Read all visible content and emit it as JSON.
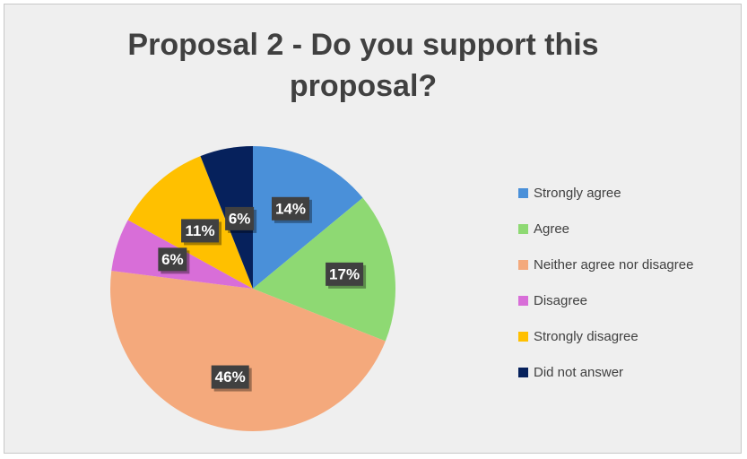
{
  "chart_data": {
    "type": "pie",
    "title": "Proposal 2 - Do you support this proposal?",
    "categories": [
      "Strongly agree",
      "Agree",
      "Neither agree nor disagree",
      "Disagree",
      "Strongly disagree",
      "Did not answer"
    ],
    "values": [
      14,
      17,
      46,
      6,
      11,
      6
    ],
    "data_labels": [
      "14%",
      "17%",
      "46%",
      "6%",
      "11%",
      "6%"
    ],
    "colors": [
      "#4a90d9",
      "#8ed973",
      "#f4a97c",
      "#d86ed8",
      "#ffc000",
      "#06215c"
    ],
    "label_background": "#404040",
    "legend_position": "right",
    "start_angle": "12 o'clock, clockwise"
  }
}
